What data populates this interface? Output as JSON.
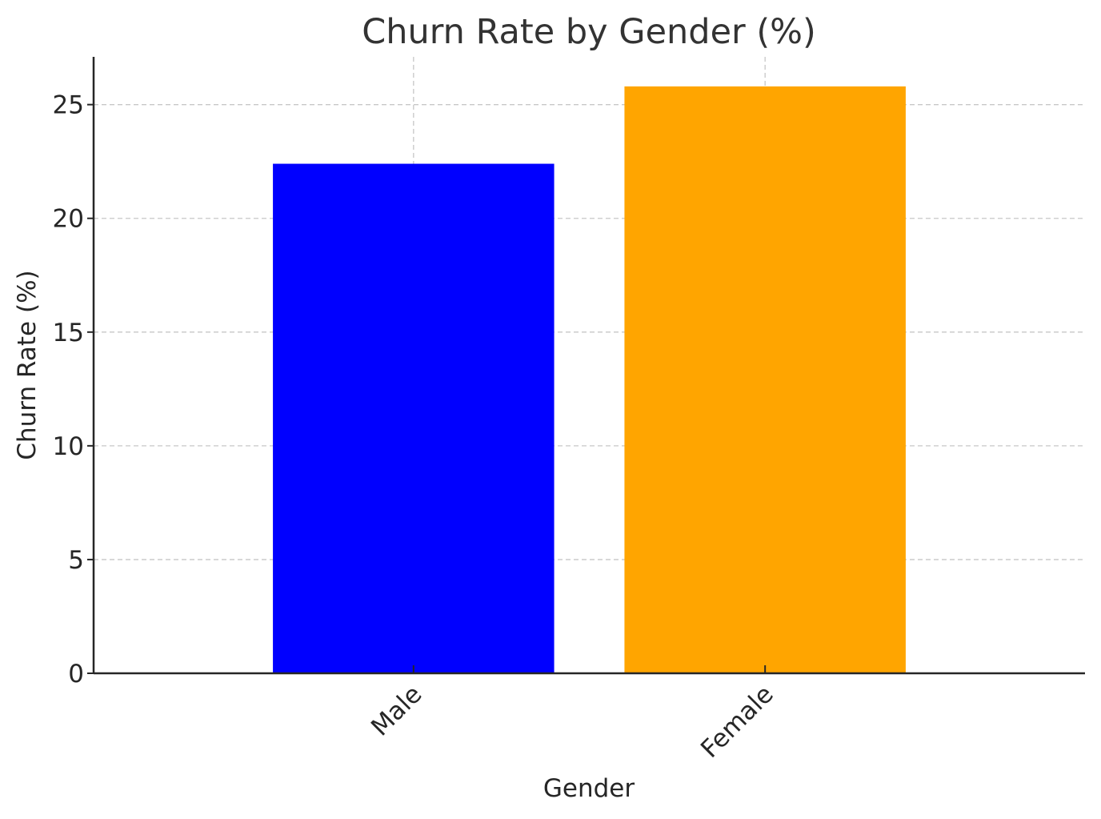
{
  "chart_data": {
    "type": "bar",
    "title": "Churn Rate by Gender (%)",
    "xlabel": "Gender",
    "ylabel": "Churn Rate (%)",
    "categories": [
      "Male",
      "Female"
    ],
    "values": [
      22.4,
      25.8
    ],
    "colors": [
      "#0000ff",
      "#ffa500"
    ],
    "ylim": [
      0,
      27.1
    ],
    "yticks": [
      0,
      5,
      10,
      15,
      20,
      25
    ],
    "grid": true,
    "x_tick_rotation_deg": 45
  }
}
